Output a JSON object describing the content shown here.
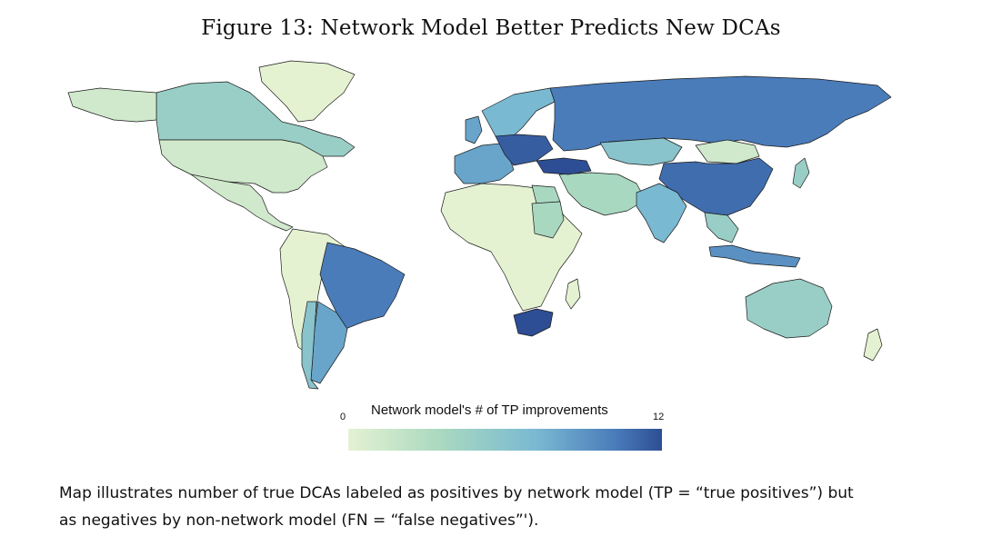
{
  "figure": {
    "title": "Figure 13: Network Model Better Predicts New DCAs"
  },
  "legend": {
    "title": "Network model's # of TP improvements",
    "min_label": "0",
    "max_label": "12",
    "min": 0,
    "max": 12,
    "palette": [
      "#e4f2d2",
      "#a9d8c0",
      "#79b9d2",
      "#4a7cba",
      "#2d4e94"
    ]
  },
  "caption": {
    "line1": "Map illustrates number of true DCAs labeled as positives by network model (TP = “true positives”) but",
    "line2": "as negatives by non-network model (FN = “false negatives”')."
  },
  "map_values": {
    "russia": 9,
    "china": 10,
    "india": 6,
    "brazil": 9,
    "south-africa": 12,
    "australia": 4,
    "canada": 4,
    "united-states": 1,
    "mexico": 1,
    "argentina": 7,
    "chile": 5,
    "germany": 11,
    "turkey": 12,
    "kazakhstan": 5,
    "mongolia": 1,
    "egypt": 3,
    "sudan": 3,
    "indonesia": 8,
    "greenland": 0,
    "africa-other": 0,
    "south-america-other": 0,
    "scandinavia": 6,
    "europe-other": 7,
    "middle-east": 3,
    "southeast-asia": 4
  }
}
